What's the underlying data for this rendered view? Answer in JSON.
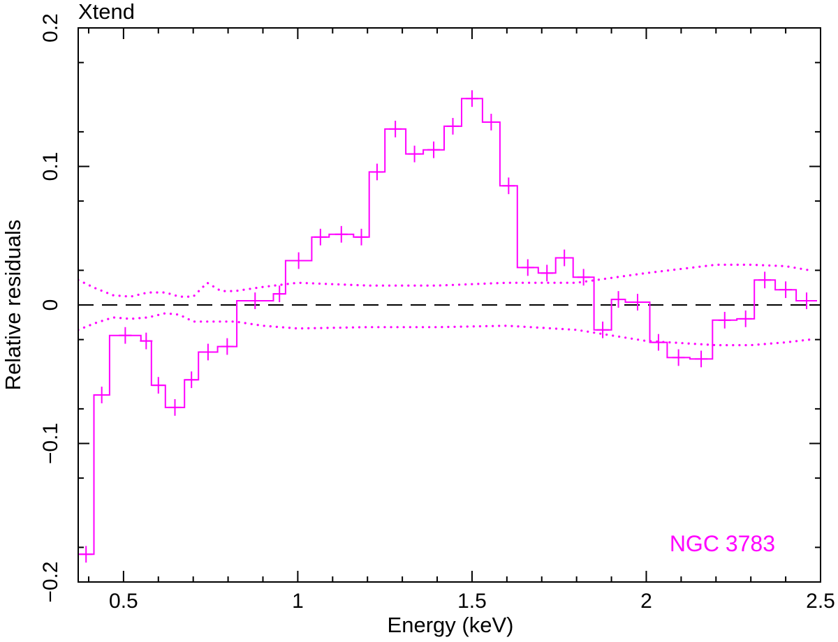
{
  "chart_data": {
    "type": "line",
    "title": "Xtend",
    "xlabel": "Energy (keV)",
    "ylabel": "Relative residuals",
    "annotation": "NGC 3783",
    "xlim": [
      0.37,
      2.5
    ],
    "ylim": [
      -0.2,
      0.2
    ],
    "xticks": [
      0.5,
      1,
      1.5,
      2,
      2.5
    ],
    "xtick_labels": [
      "0.5",
      "1",
      "1.5",
      "2",
      "2.5"
    ],
    "yticks": [
      -0.2,
      -0.1,
      0,
      0.1,
      0.2
    ],
    "ytick_labels": [
      "−0.2",
      "−0.1",
      "0",
      "0.1",
      "0.2"
    ],
    "colors": {
      "data": "#ff00ff",
      "frame": "#000000",
      "zero_line": "#000000"
    },
    "series": [
      {
        "style": "step-with-errorbars",
        "bins": [
          {
            "x0": 0.37,
            "x1": 0.415,
            "y": -0.18,
            "err": 0.006
          },
          {
            "x0": 0.415,
            "x1": 0.46,
            "y": -0.065,
            "err": 0.006
          },
          {
            "x0": 0.46,
            "x1": 0.55,
            "y": -0.022,
            "err": 0.006
          },
          {
            "x0": 0.55,
            "x1": 0.58,
            "y": -0.026,
            "err": 0.006
          },
          {
            "x0": 0.58,
            "x1": 0.62,
            "y": -0.058,
            "err": 0.006
          },
          {
            "x0": 0.62,
            "x1": 0.675,
            "y": -0.074,
            "err": 0.006
          },
          {
            "x0": 0.675,
            "x1": 0.715,
            "y": -0.054,
            "err": 0.006
          },
          {
            "x0": 0.715,
            "x1": 0.77,
            "y": -0.034,
            "err": 0.006
          },
          {
            "x0": 0.77,
            "x1": 0.825,
            "y": -0.03,
            "err": 0.006
          },
          {
            "x0": 0.825,
            "x1": 0.93,
            "y": 0.003,
            "err": 0.006
          },
          {
            "x0": 0.93,
            "x1": 0.965,
            "y": 0.008,
            "err": 0.006
          },
          {
            "x0": 0.965,
            "x1": 1.04,
            "y": 0.032,
            "err": 0.006
          },
          {
            "x0": 1.04,
            "x1": 1.09,
            "y": 0.049,
            "err": 0.006
          },
          {
            "x0": 1.09,
            "x1": 1.16,
            "y": 0.051,
            "err": 0.006
          },
          {
            "x0": 1.16,
            "x1": 1.205,
            "y": 0.049,
            "err": 0.006
          },
          {
            "x0": 1.205,
            "x1": 1.25,
            "y": 0.096,
            "err": 0.006
          },
          {
            "x0": 1.25,
            "x1": 1.31,
            "y": 0.127,
            "err": 0.006
          },
          {
            "x0": 1.31,
            "x1": 1.36,
            "y": 0.109,
            "err": 0.006
          },
          {
            "x0": 1.36,
            "x1": 1.42,
            "y": 0.112,
            "err": 0.006
          },
          {
            "x0": 1.42,
            "x1": 1.47,
            "y": 0.129,
            "err": 0.006
          },
          {
            "x0": 1.47,
            "x1": 1.53,
            "y": 0.149,
            "err": 0.006
          },
          {
            "x0": 1.53,
            "x1": 1.58,
            "y": 0.132,
            "err": 0.006
          },
          {
            "x0": 1.58,
            "x1": 1.63,
            "y": 0.086,
            "err": 0.006
          },
          {
            "x0": 1.63,
            "x1": 1.69,
            "y": 0.027,
            "err": 0.006
          },
          {
            "x0": 1.69,
            "x1": 1.74,
            "y": 0.023,
            "err": 0.006
          },
          {
            "x0": 1.74,
            "x1": 1.79,
            "y": 0.034,
            "err": 0.006
          },
          {
            "x0": 1.79,
            "x1": 1.85,
            "y": 0.02,
            "err": 0.006
          },
          {
            "x0": 1.85,
            "x1": 1.9,
            "y": -0.018,
            "err": 0.006
          },
          {
            "x0": 1.9,
            "x1": 1.94,
            "y": 0.004,
            "err": 0.006
          },
          {
            "x0": 1.94,
            "x1": 2.01,
            "y": 0.002,
            "err": 0.006
          },
          {
            "x0": 2.01,
            "x1": 2.06,
            "y": -0.027,
            "err": 0.006
          },
          {
            "x0": 2.06,
            "x1": 2.125,
            "y": -0.038,
            "err": 0.006
          },
          {
            "x0": 2.125,
            "x1": 2.19,
            "y": -0.039,
            "err": 0.006
          },
          {
            "x0": 2.19,
            "x1": 2.26,
            "y": -0.011,
            "err": 0.006
          },
          {
            "x0": 2.26,
            "x1": 2.31,
            "y": -0.01,
            "err": 0.006
          },
          {
            "x0": 2.31,
            "x1": 2.37,
            "y": 0.018,
            "err": 0.006
          },
          {
            "x0": 2.37,
            "x1": 2.43,
            "y": 0.011,
            "err": 0.006
          },
          {
            "x0": 2.43,
            "x1": 2.49,
            "y": 0.003,
            "err": 0.006
          }
        ]
      },
      {
        "style": "dotted-upper-envelope",
        "x": [
          0.37,
          0.42,
          0.47,
          0.52,
          0.57,
          0.62,
          0.66,
          0.7,
          0.74,
          0.78,
          0.82,
          0.9,
          1.0,
          1.2,
          1.4,
          1.6,
          1.8,
          2.0,
          2.2,
          2.3,
          2.4,
          2.47
        ],
        "y": [
          0.018,
          0.012,
          0.007,
          0.006,
          0.009,
          0.009,
          0.006,
          0.006,
          0.016,
          0.01,
          0.01,
          0.013,
          0.016,
          0.014,
          0.014,
          0.016,
          0.016,
          0.023,
          0.029,
          0.029,
          0.028,
          0.025
        ]
      },
      {
        "style": "dotted-lower-envelope",
        "x": [
          0.37,
          0.42,
          0.47,
          0.52,
          0.57,
          0.62,
          0.66,
          0.7,
          0.74,
          0.78,
          0.82,
          0.9,
          1.0,
          1.2,
          1.4,
          1.6,
          1.8,
          2.0,
          2.2,
          2.3,
          2.4,
          2.47
        ],
        "y": [
          -0.018,
          -0.013,
          -0.009,
          -0.01,
          -0.009,
          -0.006,
          -0.007,
          -0.012,
          -0.012,
          -0.012,
          -0.012,
          -0.015,
          -0.017,
          -0.016,
          -0.016,
          -0.015,
          -0.018,
          -0.026,
          -0.029,
          -0.029,
          -0.027,
          -0.025
        ]
      }
    ]
  }
}
